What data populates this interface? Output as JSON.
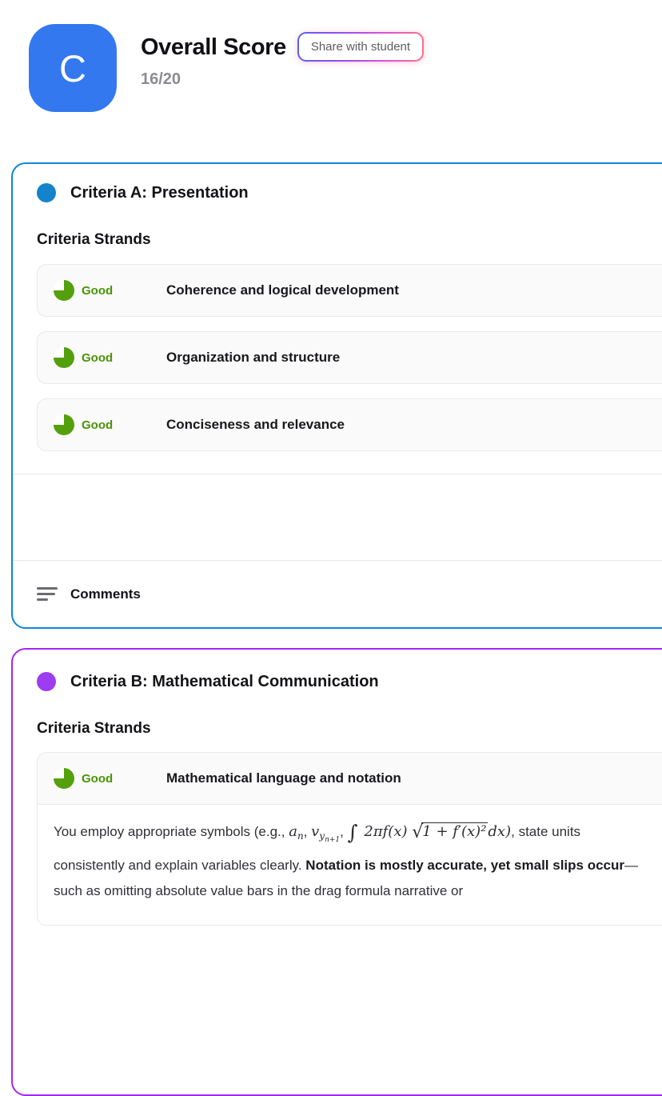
{
  "header": {
    "avatar_letter": "C",
    "title": "Overall Score",
    "share_button_label": "Share with student",
    "score": "16/20"
  },
  "colors": {
    "avatar_blue": "#3478f0",
    "criteria_a_border": "#0d85dc",
    "criteria_a_dot": "#1583cc",
    "criteria_b_border": "#a526f2",
    "criteria_b_dot": "#9d3cf0",
    "rating_green": "#54a00c",
    "rating_text_green": "#4a9406",
    "share_border_gradient": [
      "#5c5ef0",
      "#9b4df2",
      "#fb7185"
    ]
  },
  "sections": [
    {
      "title": "Criteria A: Presentation",
      "strands_heading": "Criteria Strands",
      "strands": [
        {
          "rating": "Good",
          "label": "Coherence and logical development"
        },
        {
          "rating": "Good",
          "label": "Organization and structure"
        },
        {
          "rating": "Good",
          "label": "Conciseness and relevance"
        }
      ],
      "comments_label": "Comments"
    },
    {
      "title": "Criteria B: Mathematical Communication",
      "strands_heading": "Criteria Strands",
      "strands": [
        {
          "rating": "Good",
          "label": "Mathematical language and notation"
        }
      ],
      "feedback": {
        "t1": "You employ appropriate symbols (e.g., ",
        "a_base": "a",
        "a_sub": "n",
        "sep1": ", ",
        "v_base": "v",
        "v_sub": "y",
        "v_subsub": "n+1",
        "sep2": ", ",
        "integral": "∫",
        "int_body": " 2πf(x) ",
        "sqrt_sign": "√",
        "sqrt_body": "1 + f′(x)² ",
        "dx": "dx",
        "close_paren": ")",
        "t2": ", state units consistently and explain variables clearly. ",
        "bold": "Notation is mostly accurate, yet small slips occur",
        "t3": "—such as omitting absolute value bars in the drag formula narrative or"
      }
    }
  ]
}
